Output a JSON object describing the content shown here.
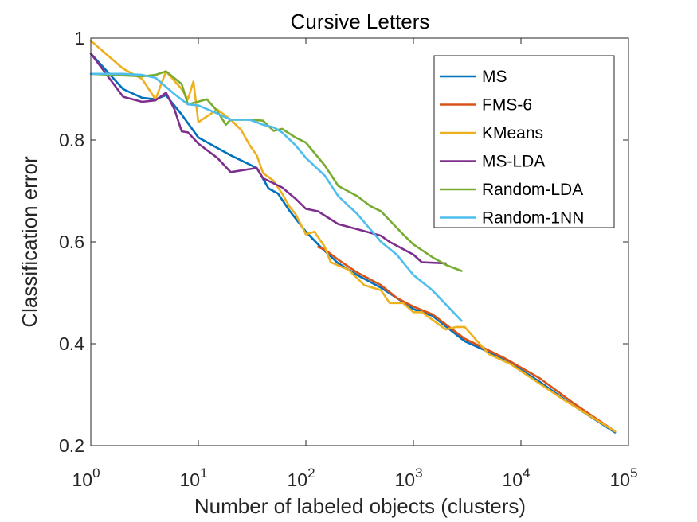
{
  "chart_data": {
    "type": "line",
    "title": "Cursive Letters",
    "xlabel": "Number of labeled objects (clusters)",
    "ylabel": "Classification error",
    "xscale": "log",
    "xlim": [
      1,
      100000
    ],
    "ylim": [
      0.2,
      1.0
    ],
    "xticks": [
      {
        "value": 1,
        "base": "10",
        "exp": "0"
      },
      {
        "value": 10,
        "base": "10",
        "exp": "1"
      },
      {
        "value": 100,
        "base": "10",
        "exp": "2"
      },
      {
        "value": 1000,
        "base": "10",
        "exp": "3"
      },
      {
        "value": 10000,
        "base": "10",
        "exp": "4"
      },
      {
        "value": 100000,
        "base": "10",
        "exp": "5"
      }
    ],
    "yticks": [
      {
        "value": 0.2,
        "label": "0.2"
      },
      {
        "value": 0.4,
        "label": "0.4"
      },
      {
        "value": 0.6,
        "label": "0.6"
      },
      {
        "value": 0.8,
        "label": "0.8"
      },
      {
        "value": 1.0,
        "label": "1"
      }
    ],
    "grid": false,
    "legend_position": "top-right",
    "series": [
      {
        "name": "MS",
        "color": "#0072BD",
        "points": [
          [
            1,
            0.97
          ],
          [
            2,
            0.9
          ],
          [
            3,
            0.883
          ],
          [
            4,
            0.88
          ],
          [
            5,
            0.888
          ],
          [
            7,
            0.85
          ],
          [
            10,
            0.805
          ],
          [
            20,
            0.77
          ],
          [
            35,
            0.745
          ],
          [
            45,
            0.705
          ],
          [
            55,
            0.695
          ],
          [
            70,
            0.662
          ],
          [
            100,
            0.62
          ],
          [
            140,
            0.588
          ],
          [
            200,
            0.558
          ],
          [
            300,
            0.535
          ],
          [
            500,
            0.51
          ],
          [
            700,
            0.49
          ],
          [
            1000,
            0.468
          ],
          [
            1500,
            0.455
          ],
          [
            3000,
            0.405
          ],
          [
            7000,
            0.37
          ],
          [
            15000,
            0.325
          ],
          [
            30000,
            0.28
          ],
          [
            75000,
            0.226
          ]
        ]
      },
      {
        "name": "FMS-6",
        "color": "#D95319",
        "points": [
          [
            130,
            0.59
          ],
          [
            150,
            0.585
          ],
          [
            200,
            0.565
          ],
          [
            300,
            0.54
          ],
          [
            500,
            0.515
          ],
          [
            700,
            0.49
          ],
          [
            1000,
            0.473
          ],
          [
            1500,
            0.458
          ],
          [
            3000,
            0.41
          ],
          [
            7000,
            0.372
          ],
          [
            15000,
            0.332
          ],
          [
            30000,
            0.285
          ],
          [
            75000,
            0.228
          ]
        ]
      },
      {
        "name": "KMeans",
        "color": "#EDB120",
        "points": [
          [
            1,
            0.995
          ],
          [
            2,
            0.94
          ],
          [
            3,
            0.92
          ],
          [
            4,
            0.88
          ],
          [
            5,
            0.935
          ],
          [
            7,
            0.9
          ],
          [
            8,
            0.88
          ],
          [
            9,
            0.915
          ],
          [
            10,
            0.835
          ],
          [
            15,
            0.86
          ],
          [
            20,
            0.84
          ],
          [
            25,
            0.82
          ],
          [
            30,
            0.79
          ],
          [
            35,
            0.77
          ],
          [
            40,
            0.735
          ],
          [
            50,
            0.72
          ],
          [
            60,
            0.695
          ],
          [
            70,
            0.67
          ],
          [
            80,
            0.655
          ],
          [
            100,
            0.615
          ],
          [
            120,
            0.62
          ],
          [
            150,
            0.59
          ],
          [
            170,
            0.56
          ],
          [
            250,
            0.545
          ],
          [
            350,
            0.515
          ],
          [
            500,
            0.505
          ],
          [
            600,
            0.48
          ],
          [
            800,
            0.48
          ],
          [
            1000,
            0.462
          ],
          [
            1200,
            0.462
          ],
          [
            2000,
            0.428
          ],
          [
            2500,
            0.433
          ],
          [
            3000,
            0.433
          ],
          [
            5000,
            0.38
          ],
          [
            8000,
            0.36
          ],
          [
            12000,
            0.335
          ],
          [
            25000,
            0.29
          ],
          [
            75000,
            0.228
          ]
        ]
      },
      {
        "name": "MS-LDA",
        "color": "#7E2F8E",
        "points": [
          [
            1,
            0.97
          ],
          [
            2,
            0.885
          ],
          [
            3,
            0.875
          ],
          [
            4,
            0.878
          ],
          [
            5,
            0.893
          ],
          [
            6,
            0.86
          ],
          [
            7,
            0.817
          ],
          [
            8,
            0.815
          ],
          [
            10,
            0.793
          ],
          [
            15,
            0.765
          ],
          [
            20,
            0.737
          ],
          [
            30,
            0.743
          ],
          [
            35,
            0.745
          ],
          [
            40,
            0.725
          ],
          [
            60,
            0.707
          ],
          [
            80,
            0.685
          ],
          [
            100,
            0.665
          ],
          [
            130,
            0.66
          ],
          [
            200,
            0.635
          ],
          [
            300,
            0.625
          ],
          [
            500,
            0.612
          ],
          [
            600,
            0.6
          ],
          [
            1000,
            0.575
          ],
          [
            1200,
            0.56
          ],
          [
            2000,
            0.558
          ]
        ]
      },
      {
        "name": "Random-LDA",
        "color": "#77AC30",
        "points": [
          [
            1,
            0.93
          ],
          [
            3,
            0.925
          ],
          [
            4,
            0.928
          ],
          [
            5,
            0.935
          ],
          [
            7,
            0.91
          ],
          [
            8,
            0.87
          ],
          [
            12,
            0.88
          ],
          [
            15,
            0.857
          ],
          [
            18,
            0.83
          ],
          [
            20,
            0.84
          ],
          [
            30,
            0.84
          ],
          [
            40,
            0.838
          ],
          [
            50,
            0.818
          ],
          [
            60,
            0.822
          ],
          [
            80,
            0.805
          ],
          [
            100,
            0.795
          ],
          [
            150,
            0.75
          ],
          [
            200,
            0.71
          ],
          [
            300,
            0.69
          ],
          [
            400,
            0.67
          ],
          [
            500,
            0.66
          ],
          [
            800,
            0.615
          ],
          [
            1000,
            0.595
          ],
          [
            1500,
            0.57
          ],
          [
            2000,
            0.555
          ],
          [
            2800,
            0.543
          ]
        ]
      },
      {
        "name": "Random-1NN",
        "color": "#4DBEEE",
        "points": [
          [
            1,
            0.93
          ],
          [
            2,
            0.93
          ],
          [
            3,
            0.928
          ],
          [
            4,
            0.922
          ],
          [
            6,
            0.89
          ],
          [
            8,
            0.87
          ],
          [
            10,
            0.868
          ],
          [
            15,
            0.852
          ],
          [
            20,
            0.84
          ],
          [
            30,
            0.84
          ],
          [
            40,
            0.83
          ],
          [
            50,
            0.825
          ],
          [
            60,
            0.815
          ],
          [
            80,
            0.79
          ],
          [
            100,
            0.765
          ],
          [
            150,
            0.73
          ],
          [
            200,
            0.69
          ],
          [
            300,
            0.655
          ],
          [
            500,
            0.6
          ],
          [
            700,
            0.575
          ],
          [
            1000,
            0.535
          ],
          [
            1500,
            0.505
          ],
          [
            2800,
            0.445
          ]
        ]
      }
    ]
  }
}
